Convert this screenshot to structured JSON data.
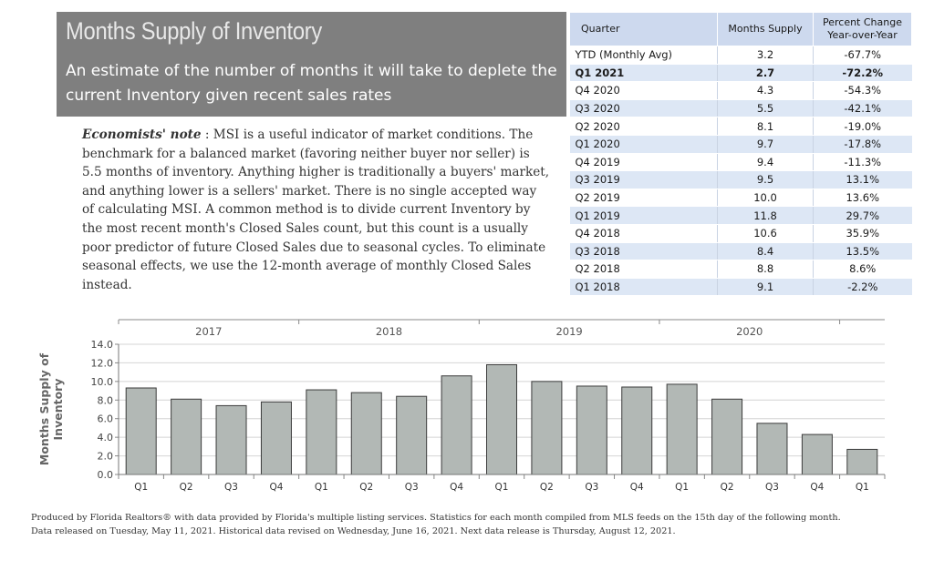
{
  "header": {
    "title": "Months Supply of Inventory",
    "subtitle": "An estimate of the number of months it will take to deplete the current Inventory given recent sales rates"
  },
  "note": {
    "label": "Economists' note",
    "separator": " : ",
    "text": "MSI is a useful indicator of market conditions.  The benchmark for a balanced market (favoring neither buyer nor seller) is 5.5 months of inventory.  Anything higher is traditionally a buyers' market, and anything lower is a sellers' market.  There is no single accepted way of calculating MSI.  A common method is to divide current Inventory by the most recent month's Closed Sales count, but this count is a usually poor predictor of future Closed Sales due to seasonal cycles.  To eliminate seasonal effects, we use the 12-month average of monthly Closed Sales instead."
  },
  "table": {
    "headers": [
      "Quarter",
      "Months Supply",
      "Percent Change Year-over-Year"
    ],
    "rows": [
      {
        "quarter": "YTD (Monthly Avg)",
        "supply": "3.2",
        "change": "-67.7%",
        "bold": false
      },
      {
        "quarter": "Q1 2021",
        "supply": "2.7",
        "change": "-72.2%",
        "bold": true
      },
      {
        "quarter": "Q4 2020",
        "supply": "4.3",
        "change": "-54.3%",
        "bold": false
      },
      {
        "quarter": "Q3 2020",
        "supply": "5.5",
        "change": "-42.1%",
        "bold": false
      },
      {
        "quarter": "Q2 2020",
        "supply": "8.1",
        "change": "-19.0%",
        "bold": false
      },
      {
        "quarter": "Q1 2020",
        "supply": "9.7",
        "change": "-17.8%",
        "bold": false
      },
      {
        "quarter": "Q4 2019",
        "supply": "9.4",
        "change": "-11.3%",
        "bold": false
      },
      {
        "quarter": "Q3 2019",
        "supply": "9.5",
        "change": "13.1%",
        "bold": false
      },
      {
        "quarter": "Q2 2019",
        "supply": "10.0",
        "change": "13.6%",
        "bold": false
      },
      {
        "quarter": "Q1 2019",
        "supply": "11.8",
        "change": "29.7%",
        "bold": false
      },
      {
        "quarter": "Q4 2018",
        "supply": "10.6",
        "change": "35.9%",
        "bold": false
      },
      {
        "quarter": "Q3 2018",
        "supply": "8.4",
        "change": "13.5%",
        "bold": false
      },
      {
        "quarter": "Q2 2018",
        "supply": "8.8",
        "change": "8.6%",
        "bold": false
      },
      {
        "quarter": "Q1 2018",
        "supply": "9.1",
        "change": "-2.2%",
        "bold": false
      }
    ]
  },
  "chart_data": {
    "type": "bar",
    "title": "",
    "xlabel": "",
    "ylabel": "Months Supply of Inventory",
    "ylim": [
      0,
      14
    ],
    "yticks": [
      "0.0",
      "2.0",
      "4.0",
      "6.0",
      "8.0",
      "10.0",
      "12.0",
      "14.0"
    ],
    "grid": true,
    "year_labels": [
      "2017",
      "2018",
      "2019",
      "2020"
    ],
    "categories": [
      "Q1",
      "Q2",
      "Q3",
      "Q4",
      "Q1",
      "Q2",
      "Q3",
      "Q4",
      "Q1",
      "Q2",
      "Q3",
      "Q4",
      "Q1",
      "Q2",
      "Q3",
      "Q4",
      "Q1"
    ],
    "values": [
      9.3,
      8.1,
      7.4,
      7.8,
      9.1,
      8.8,
      8.4,
      10.6,
      11.8,
      10.0,
      9.5,
      9.4,
      9.7,
      8.1,
      5.5,
      4.3,
      2.7
    ],
    "bar_color": "#b2b8b5",
    "bar_stroke": "#3c3c3c"
  },
  "footer": {
    "line1": "Produced by Florida Realtors® with data provided by Florida's multiple listing services. Statistics for each month compiled from MLS feeds on the 15th day of the following month.",
    "line2": "Data released on Tuesday, May 11, 2021. Historical data revised on Wednesday, June 16, 2021. Next data release is Thursday, August 12, 2021."
  }
}
